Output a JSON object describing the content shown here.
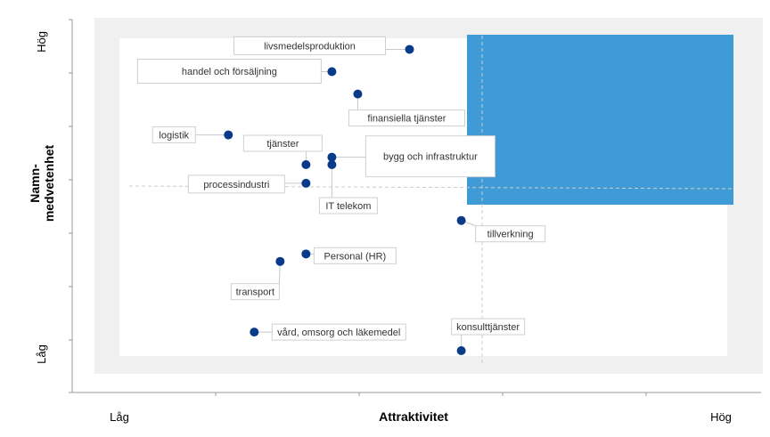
{
  "chart_data": {
    "type": "scatter",
    "title": "",
    "xlabel": "Attraktivitet",
    "ylabel": "Namn-medvetenhet",
    "ylabel_lines": [
      "Namn-",
      "medvetenhet"
    ],
    "x_low_label": "Låg",
    "x_high_label": "Hög",
    "y_low_label": "Låg",
    "y_high_label": "Hög",
    "xlim": [
      0,
      10
    ],
    "ylim": [
      0,
      10
    ],
    "grid": false,
    "highlight_color": "#3f9bd5",
    "point_color": "#0a3a8a",
    "background_band_color": "#f0f0f0",
    "points": [
      {
        "name": "livsmedelsproduktion",
        "x": 5.2,
        "y": 9.2
      },
      {
        "name": "handel och försäljning",
        "x": 4.0,
        "y": 8.6
      },
      {
        "name": "finansiella tjänster",
        "x": 4.4,
        "y": 8.0
      },
      {
        "name": "logistik",
        "x": 2.4,
        "y": 6.9
      },
      {
        "name": "tjänster",
        "x": 3.6,
        "y": 6.1
      },
      {
        "name": "bygg och infrastruktur",
        "x": 4.0,
        "y": 6.3
      },
      {
        "name": "IT telekom",
        "x": 4.0,
        "y": 6.1
      },
      {
        "name": "processindustri",
        "x": 3.6,
        "y": 5.6
      },
      {
        "name": "tillverkning",
        "x": 6.0,
        "y": 4.6
      },
      {
        "name": "Personal (HR)",
        "x": 3.6,
        "y": 3.7
      },
      {
        "name": "transport",
        "x": 3.2,
        "y": 3.5
      },
      {
        "name": "vård, omsorg och läkemedel",
        "x": 2.8,
        "y": 1.6
      },
      {
        "name": "konsulttjänster",
        "x": 6.0,
        "y": 1.1
      }
    ]
  }
}
